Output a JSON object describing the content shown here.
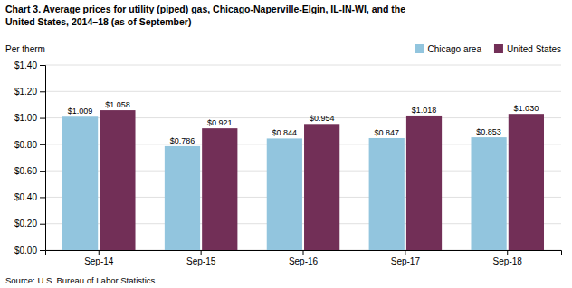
{
  "chart_data": {
    "type": "bar",
    "title": [
      "Chart 3. Average prices for utility (piped) gas, Chicago-Naperville-Elgin, IL-IN-WI, and the",
      "United States, 2014–18 (as of September)"
    ],
    "y_label": "Per therm",
    "source": "Source: U.S. Bureau of Labor Statistics.",
    "categories": [
      "Sep-14",
      "Sep-15",
      "Sep-16",
      "Sep-17",
      "Sep-18"
    ],
    "series": [
      {
        "name": "Chicago area",
        "color": "#92C5DE",
        "values": [
          1.009,
          0.786,
          0.844,
          0.847,
          0.853
        ],
        "value_labels": [
          "$1.009",
          "$0.786",
          "$0.844",
          "$0.847",
          "$0.853"
        ]
      },
      {
        "name": "United States",
        "color": "#722F57",
        "values": [
          1.058,
          0.921,
          0.954,
          1.018,
          1.03
        ],
        "value_labels": [
          "$1.058",
          "$0.921",
          "$0.954",
          "$1.018",
          "$1.030"
        ]
      }
    ],
    "ylim": [
      0.0,
      1.4
    ],
    "yticks": [
      {
        "value": 0.0,
        "label": "$0.00"
      },
      {
        "value": 0.2,
        "label": "$0.20"
      },
      {
        "value": 0.4,
        "label": "$0.40"
      },
      {
        "value": 0.6,
        "label": "$0.60"
      },
      {
        "value": 0.8,
        "label": "$0.80"
      },
      {
        "value": 1.0,
        "label": "$1.00"
      },
      {
        "value": 1.2,
        "label": "$1.20"
      },
      {
        "value": 1.4,
        "label": "$1.40"
      }
    ],
    "grid": true,
    "legend": "top-right",
    "data_labels": true
  }
}
